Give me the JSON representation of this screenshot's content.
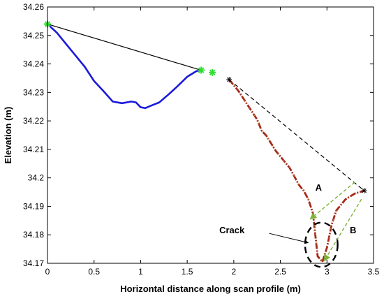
{
  "chart_data": {
    "type": "line",
    "title": "",
    "xlabel": "Horizontal distance along scan profile (m)",
    "ylabel": "Elevation (m)",
    "xlim": [
      0,
      3.5
    ],
    "ylim": [
      34.17,
      34.26
    ],
    "x_ticks": [
      0,
      0.5,
      1,
      1.5,
      2,
      2.5,
      3,
      3.5
    ],
    "y_ticks": [
      34.17,
      34.18,
      34.19,
      34.2,
      34.21,
      34.22,
      34.23,
      34.24,
      34.25,
      34.26
    ],
    "x_tick_labels": [
      "0",
      "0.5",
      "1",
      "1.5",
      "2",
      "2.5",
      "3",
      "3.5"
    ],
    "y_tick_labels": [
      "34.17",
      "34.18",
      "34.19",
      "34.2",
      "34.21",
      "34.22",
      "34.23",
      "34.24",
      "34.25",
      "34.26"
    ],
    "grid": false,
    "colors": {
      "blue_profile": "#1a1adb",
      "red_profile": "#a52a1a",
      "red_dash_overlay": "#c8a040",
      "chord": "#000000",
      "green_marker": "#33dd33",
      "green_arrow": "#7fb23a"
    },
    "series": [
      {
        "style": "blue-solid",
        "x": [
          0,
          0.1,
          0.2,
          0.3,
          0.4,
          0.5,
          0.6,
          0.7,
          0.8,
          0.9,
          0.95,
          1.0,
          1.05,
          1.1,
          1.2,
          1.3,
          1.4,
          1.5,
          1.6,
          1.65
        ],
        "y": [
          34.254,
          34.251,
          34.247,
          34.243,
          34.239,
          34.234,
          34.2305,
          34.2268,
          34.2262,
          34.2268,
          34.2265,
          34.2248,
          34.2245,
          34.2252,
          34.2265,
          34.2293,
          34.2323,
          34.2355,
          34.2375,
          34.2378
        ]
      },
      {
        "style": "red-dashdot",
        "x": [
          1.95,
          2.05,
          2.15,
          2.25,
          2.3,
          2.35,
          2.45,
          2.55,
          2.6,
          2.65,
          2.7,
          2.75,
          2.8,
          2.85,
          2.9,
          2.95,
          3.0,
          3.05,
          3.1,
          3.2,
          3.3,
          3.4
        ],
        "y": [
          34.2345,
          34.2305,
          34.2255,
          34.2205,
          34.2165,
          34.2148,
          34.2095,
          34.2055,
          34.2035,
          34.2005,
          34.1975,
          34.1955,
          34.1925,
          34.1875,
          34.1725,
          34.1705,
          34.1755,
          34.1835,
          34.1885,
          34.1925,
          34.1945,
          34.1955
        ]
      }
    ],
    "chords": [
      {
        "style": "solid",
        "x": [
          0,
          1.65
        ],
        "y": [
          34.254,
          34.2378
        ]
      },
      {
        "style": "dashed",
        "x": [
          1.95,
          3.4
        ],
        "y": [
          34.2345,
          34.1955
        ]
      }
    ],
    "markers": [
      {
        "symbol": "star",
        "color": "green",
        "x": 0,
        "y": 34.254
      },
      {
        "symbol": "star",
        "color": "green",
        "x": 1.65,
        "y": 34.2378
      },
      {
        "symbol": "star",
        "color": "green",
        "x": 1.77,
        "y": 34.237
      },
      {
        "symbol": "star",
        "color": "black",
        "x": 1.95,
        "y": 34.2345
      },
      {
        "symbol": "star",
        "color": "black",
        "x": 3.4,
        "y": 34.1955
      }
    ],
    "arrows": [
      {
        "from_x": 3.3,
        "from_y": 34.1985,
        "to_x": 2.82,
        "to_y": 34.1855
      },
      {
        "from_x": 3.37,
        "from_y": 34.1925,
        "to_x": 2.97,
        "to_y": 34.1708
      }
    ],
    "annotations": [
      {
        "text": "A",
        "x": 2.91,
        "y": 34.1955
      },
      {
        "text": "B",
        "x": 3.28,
        "y": 34.1805
      },
      {
        "text": "Crack",
        "x": 1.98,
        "y": 34.1805
      }
    ],
    "crack_ellipse": {
      "cx": 2.94,
      "cy": 34.1765,
      "rx": 0.175,
      "ry": 0.0078
    },
    "crack_arrow": {
      "from_x": 2.38,
      "from_y": 34.1805,
      "to_x": 2.8,
      "to_y": 34.1772
    }
  }
}
